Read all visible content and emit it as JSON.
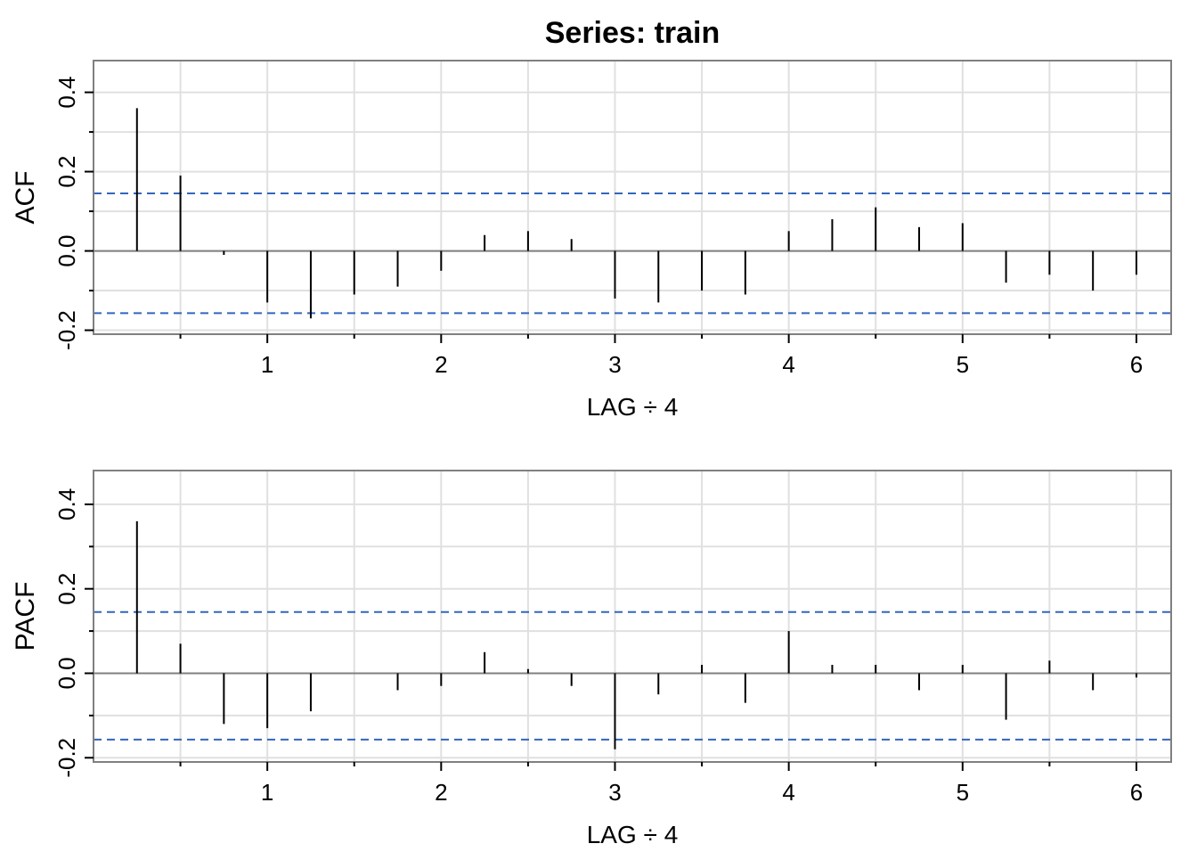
{
  "title": "Series:  train",
  "colors": {
    "grid": "#e0e0e0",
    "frame": "#808080",
    "spike": "#000000",
    "ci": "#3366bb",
    "zero": "#808080"
  },
  "chart_data": [
    {
      "type": "line",
      "subtype": "acf-spikes",
      "ylabel": "ACF",
      "xlabel": "LAG ÷ 4",
      "xlim": [
        0,
        6.2
      ],
      "ylim": [
        -0.21,
        0.48
      ],
      "xticks": [
        1,
        2,
        3,
        4,
        5,
        6
      ],
      "yticks": [
        -0.2,
        0.0,
        0.2,
        0.4
      ],
      "ytick_labels": [
        "-0.2",
        "0.0",
        "0.2",
        "0.4"
      ],
      "ci": [
        0.145,
        -0.157
      ],
      "grid": true,
      "x": [
        0.25,
        0.5,
        0.75,
        1.0,
        1.25,
        1.5,
        1.75,
        2.0,
        2.25,
        2.5,
        2.75,
        3.0,
        3.25,
        3.5,
        3.75,
        4.0,
        4.25,
        4.5,
        4.75,
        5.0,
        5.25,
        5.5,
        5.75,
        6.0
      ],
      "values": [
        0.36,
        0.19,
        -0.01,
        -0.13,
        -0.17,
        -0.11,
        -0.09,
        -0.05,
        0.04,
        0.05,
        0.03,
        -0.12,
        -0.13,
        -0.1,
        -0.11,
        0.05,
        0.08,
        0.11,
        0.06,
        0.07,
        -0.08,
        -0.06,
        -0.1,
        -0.06
      ]
    },
    {
      "type": "line",
      "subtype": "pacf-spikes",
      "ylabel": "PACF",
      "xlabel": "LAG ÷ 4",
      "xlim": [
        0,
        6.2
      ],
      "ylim": [
        -0.21,
        0.48
      ],
      "xticks": [
        1,
        2,
        3,
        4,
        5,
        6
      ],
      "yticks": [
        -0.2,
        0.0,
        0.2,
        0.4
      ],
      "ytick_labels": [
        "-0.2",
        "0.0",
        "0.2",
        "0.4"
      ],
      "ci": [
        0.145,
        -0.157
      ],
      "grid": true,
      "x": [
        0.25,
        0.5,
        0.75,
        1.0,
        1.25,
        1.5,
        1.75,
        2.0,
        2.25,
        2.5,
        2.75,
        3.0,
        3.25,
        3.5,
        3.75,
        4.0,
        4.25,
        4.5,
        4.75,
        5.0,
        5.25,
        5.5,
        5.75,
        6.0
      ],
      "values": [
        0.36,
        0.07,
        -0.12,
        -0.13,
        -0.09,
        0.0,
        -0.04,
        -0.03,
        0.05,
        0.01,
        -0.03,
        -0.18,
        -0.05,
        0.02,
        -0.07,
        0.1,
        0.02,
        0.02,
        -0.04,
        0.02,
        -0.11,
        0.03,
        -0.04,
        -0.01
      ]
    }
  ]
}
